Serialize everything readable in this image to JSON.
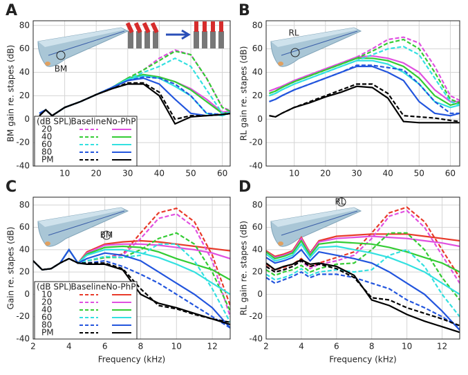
{
  "chart_data": [
    {
      "type": "line",
      "panel_label": "A",
      "ylabel": "BM gain re. stapes (dB)",
      "annotation": "BM",
      "x": [
        2,
        4,
        6,
        10,
        15,
        20,
        25,
        30,
        35,
        40,
        45,
        50,
        55,
        60,
        63
      ],
      "xlim": [
        0,
        62.5
      ],
      "xticks": [
        10,
        20,
        30,
        40,
        50,
        60
      ],
      "ylim": [
        -40,
        84
      ],
      "yticks": [
        -40,
        -20,
        0,
        20,
        40,
        60,
        80
      ],
      "grid": true,
      "legend_header": [
        "(dB SPL)",
        "Baseline",
        "No-PhP"
      ],
      "series": [
        {
          "name": "20",
          "color": "#e050e0",
          "baseline": [
            5,
            8,
            3,
            10,
            15,
            21,
            27,
            35,
            42,
            52,
            59,
            55,
            35,
            10,
            7
          ],
          "no_php": [
            5,
            8,
            3,
            10,
            15,
            21,
            27,
            35,
            38,
            36,
            32,
            26,
            17,
            6,
            7
          ]
        },
        {
          "name": "40",
          "color": "#33cc33",
          "baseline": [
            5,
            8,
            3,
            10,
            15,
            21,
            27,
            35,
            42,
            50,
            58,
            55,
            35,
            10,
            6
          ],
          "no_php": [
            5,
            8,
            3,
            10,
            15,
            21,
            27,
            35,
            38,
            36,
            32,
            25,
            15,
            5,
            6
          ]
        },
        {
          "name": "60",
          "color": "#33e0e0",
          "baseline": [
            5,
            8,
            3,
            10,
            15,
            21,
            27,
            34,
            40,
            45,
            52,
            45,
            25,
            5,
            6
          ],
          "no_php": [
            5,
            8,
            3,
            10,
            15,
            21,
            27,
            34,
            37,
            35,
            28,
            20,
            5,
            3,
            6
          ]
        },
        {
          "name": "80",
          "color": "#2255dd",
          "baseline": [
            5,
            8,
            3,
            10,
            15,
            21,
            27,
            33,
            36,
            35,
            30,
            20,
            5,
            4,
            5
          ],
          "no_php": [
            5,
            8,
            3,
            10,
            15,
            21,
            27,
            33,
            35,
            30,
            17,
            5,
            3,
            4,
            5
          ]
        },
        {
          "name": "PM",
          "color": "#000000",
          "baseline": [
            3,
            8,
            3,
            10,
            15,
            21,
            26,
            31,
            31,
            23,
            0,
            3,
            3,
            4,
            5
          ],
          "no_php": [
            3,
            8,
            3,
            10,
            15,
            21,
            26,
            30,
            30,
            20,
            -4,
            2,
            3,
            4,
            5
          ]
        }
      ]
    },
    {
      "type": "line",
      "panel_label": "B",
      "ylabel": "RL gain re. stapes (dB)",
      "annotation": "RL",
      "x": [
        2,
        4,
        6,
        10,
        15,
        20,
        25,
        30,
        35,
        40,
        45,
        50,
        55,
        60,
        63
      ],
      "xlim": [
        1,
        63
      ],
      "xticks": [
        10,
        20,
        30,
        40,
        50,
        60
      ],
      "ylim": [
        -40,
        84
      ],
      "yticks": [
        -40,
        -20,
        0,
        20,
        40,
        60,
        80
      ],
      "grid": true,
      "series": [
        {
          "name": "20",
          "color": "#e050e0",
          "baseline": [
            24,
            26,
            28,
            33,
            38,
            43,
            48,
            53,
            60,
            68,
            70,
            65,
            45,
            20,
            16
          ],
          "no_php": [
            24,
            26,
            28,
            33,
            38,
            43,
            48,
            53,
            54,
            52,
            48,
            40,
            25,
            15,
            15
          ]
        },
        {
          "name": "40",
          "color": "#33cc33",
          "baseline": [
            22,
            24,
            27,
            32,
            37,
            42,
            47,
            52,
            58,
            65,
            68,
            60,
            40,
            17,
            14
          ],
          "no_php": [
            22,
            24,
            27,
            32,
            37,
            42,
            47,
            52,
            52,
            50,
            45,
            35,
            20,
            12,
            14
          ]
        },
        {
          "name": "60",
          "color": "#33e0e0",
          "baseline": [
            20,
            22,
            25,
            30,
            35,
            40,
            45,
            50,
            55,
            60,
            62,
            55,
            35,
            15,
            12
          ],
          "no_php": [
            20,
            22,
            25,
            30,
            35,
            40,
            45,
            50,
            50,
            47,
            40,
            30,
            15,
            10,
            12
          ]
        },
        {
          "name": "80",
          "color": "#2255dd",
          "baseline": [
            15,
            17,
            20,
            25,
            30,
            35,
            40,
            46,
            46,
            44,
            42,
            30,
            15,
            5,
            5
          ],
          "no_php": [
            15,
            17,
            20,
            25,
            30,
            35,
            40,
            45,
            45,
            40,
            33,
            15,
            5,
            3,
            5
          ]
        },
        {
          "name": "PM",
          "color": "#000000",
          "baseline": [
            3,
            2,
            5,
            10,
            15,
            20,
            25,
            30,
            30,
            22,
            3,
            2,
            1,
            -1,
            -2
          ],
          "no_php": [
            3,
            2,
            5,
            10,
            14,
            19,
            23,
            28,
            27,
            18,
            -2,
            -3,
            -3,
            -3,
            -3
          ]
        }
      ]
    },
    {
      "type": "line",
      "panel_label": "C",
      "ylabel": "Gain re. stapes (dB)",
      "xlabel": "Frequency (kHz)",
      "annotation": "BM",
      "x": [
        2,
        2.5,
        3,
        3.5,
        4,
        4.5,
        5,
        6,
        7,
        8,
        9,
        10,
        11,
        12,
        13
      ],
      "xlim": [
        2,
        13
      ],
      "xticks": [
        2,
        4,
        6,
        8,
        10,
        12
      ],
      "ylim": [
        -40,
        87
      ],
      "yticks": [
        -40,
        -20,
        0,
        20,
        40,
        60,
        80
      ],
      "grid": true,
      "legend_header": [
        "(dB SPL)",
        "Baseline",
        "No-PhP"
      ],
      "series": [
        {
          "name": "10",
          "color": "#e83a2a",
          "baseline": [
            30,
            22,
            23,
            28,
            32,
            28,
            30,
            33,
            36,
            55,
            73,
            77,
            65,
            35,
            -10
          ],
          "no_php": [
            30,
            22,
            23,
            28,
            40,
            28,
            38,
            45,
            47,
            48,
            47,
            45,
            43,
            41,
            39
          ]
        },
        {
          "name": "20",
          "color": "#e050e0",
          "baseline": [
            30,
            22,
            23,
            28,
            32,
            28,
            30,
            33,
            35,
            50,
            68,
            72,
            60,
            30,
            -20
          ],
          "no_php": [
            30,
            22,
            23,
            28,
            40,
            28,
            37,
            44,
            45,
            45,
            44,
            42,
            40,
            37,
            32
          ]
        },
        {
          "name": "40",
          "color": "#33cc33",
          "baseline": [
            30,
            22,
            23,
            28,
            32,
            28,
            30,
            33,
            33,
            40,
            50,
            55,
            45,
            20,
            -15
          ],
          "no_php": [
            30,
            22,
            23,
            28,
            40,
            28,
            36,
            42,
            43,
            42,
            38,
            32,
            27,
            22,
            13
          ]
        },
        {
          "name": "60",
          "color": "#33e0e0",
          "baseline": [
            30,
            22,
            23,
            28,
            32,
            28,
            30,
            34,
            33,
            35,
            45,
            45,
            30,
            5,
            -25
          ],
          "no_php": [
            30,
            22,
            23,
            28,
            40,
            28,
            35,
            40,
            40,
            37,
            33,
            27,
            20,
            10,
            0
          ]
        },
        {
          "name": "80",
          "color": "#2255dd",
          "baseline": [
            30,
            22,
            23,
            28,
            32,
            28,
            28,
            30,
            25,
            18,
            10,
            0,
            -10,
            -20,
            -30
          ],
          "no_php": [
            30,
            22,
            23,
            28,
            40,
            28,
            32,
            37,
            35,
            30,
            20,
            10,
            0,
            -12,
            -30
          ]
        },
        {
          "name": "PM",
          "color": "#000000",
          "baseline": [
            30,
            22,
            23,
            28,
            32,
            28,
            28,
            28,
            23,
            5,
            -10,
            -13,
            -18,
            -22,
            -25
          ],
          "no_php": [
            30,
            22,
            23,
            28,
            32,
            28,
            27,
            27,
            22,
            0,
            -8,
            -12,
            -17,
            -22,
            -27
          ]
        }
      ]
    },
    {
      "type": "line",
      "panel_label": "D",
      "ylabel": "RL gain re. stapes (dB)",
      "xlabel": "Frequency (kHz)",
      "annotation": "RL",
      "x": [
        2,
        2.5,
        3,
        3.5,
        4,
        4.5,
        5,
        6,
        7,
        8,
        9,
        10,
        11,
        12,
        13
      ],
      "xlim": [
        2,
        13
      ],
      "xticks": [
        2,
        4,
        6,
        8,
        10,
        12
      ],
      "ylim": [
        -40,
        87
      ],
      "yticks": [
        -40,
        -20,
        0,
        20,
        40,
        60,
        80
      ],
      "grid": true,
      "series": [
        {
          "name": "10",
          "color": "#e83a2a",
          "baseline": [
            27,
            22,
            24,
            27,
            32,
            25,
            28,
            33,
            38,
            55,
            73,
            78,
            65,
            40,
            15
          ],
          "no_php": [
            39,
            34,
            36,
            39,
            51,
            37,
            48,
            52,
            53,
            54,
            54,
            54,
            52,
            50,
            48
          ]
        },
        {
          "name": "20",
          "color": "#e050e0",
          "baseline": [
            25,
            20,
            22,
            25,
            30,
            23,
            27,
            30,
            35,
            50,
            70,
            75,
            60,
            35,
            10
          ],
          "no_php": [
            38,
            33,
            35,
            38,
            50,
            36,
            47,
            50,
            51,
            52,
            51,
            50,
            48,
            46,
            43
          ]
        },
        {
          "name": "40",
          "color": "#33cc33",
          "baseline": [
            22,
            17,
            20,
            22,
            26,
            20,
            23,
            27,
            28,
            40,
            55,
            55,
            40,
            15,
            -5
          ],
          "no_php": [
            38,
            32,
            34,
            37,
            48,
            35,
            45,
            47,
            46,
            45,
            42,
            38,
            33,
            28,
            20
          ]
        },
        {
          "name": "60",
          "color": "#33e0e0",
          "baseline": [
            18,
            13,
            15,
            18,
            23,
            17,
            20,
            22,
            20,
            22,
            35,
            40,
            25,
            0,
            -20
          ],
          "no_php": [
            36,
            30,
            32,
            35,
            45,
            33,
            42,
            43,
            40,
            37,
            33,
            27,
            20,
            10,
            0
          ]
        },
        {
          "name": "80",
          "color": "#2255dd",
          "baseline": [
            15,
            10,
            13,
            16,
            20,
            15,
            18,
            18,
            15,
            10,
            5,
            -5,
            -12,
            -20,
            -30
          ],
          "no_php": [
            33,
            28,
            30,
            33,
            40,
            30,
            38,
            35,
            32,
            28,
            20,
            10,
            0,
            -15,
            -32
          ]
        },
        {
          "name": "PM",
          "color": "#000000",
          "baseline": [
            25,
            20,
            22,
            25,
            30,
            25,
            27,
            23,
            15,
            -3,
            -5,
            -12,
            -17,
            -22,
            -28
          ],
          "no_php": [
            28,
            22,
            25,
            27,
            31,
            27,
            28,
            25,
            17,
            -5,
            -10,
            -18,
            -24,
            -29,
            -34
          ]
        }
      ]
    }
  ]
}
